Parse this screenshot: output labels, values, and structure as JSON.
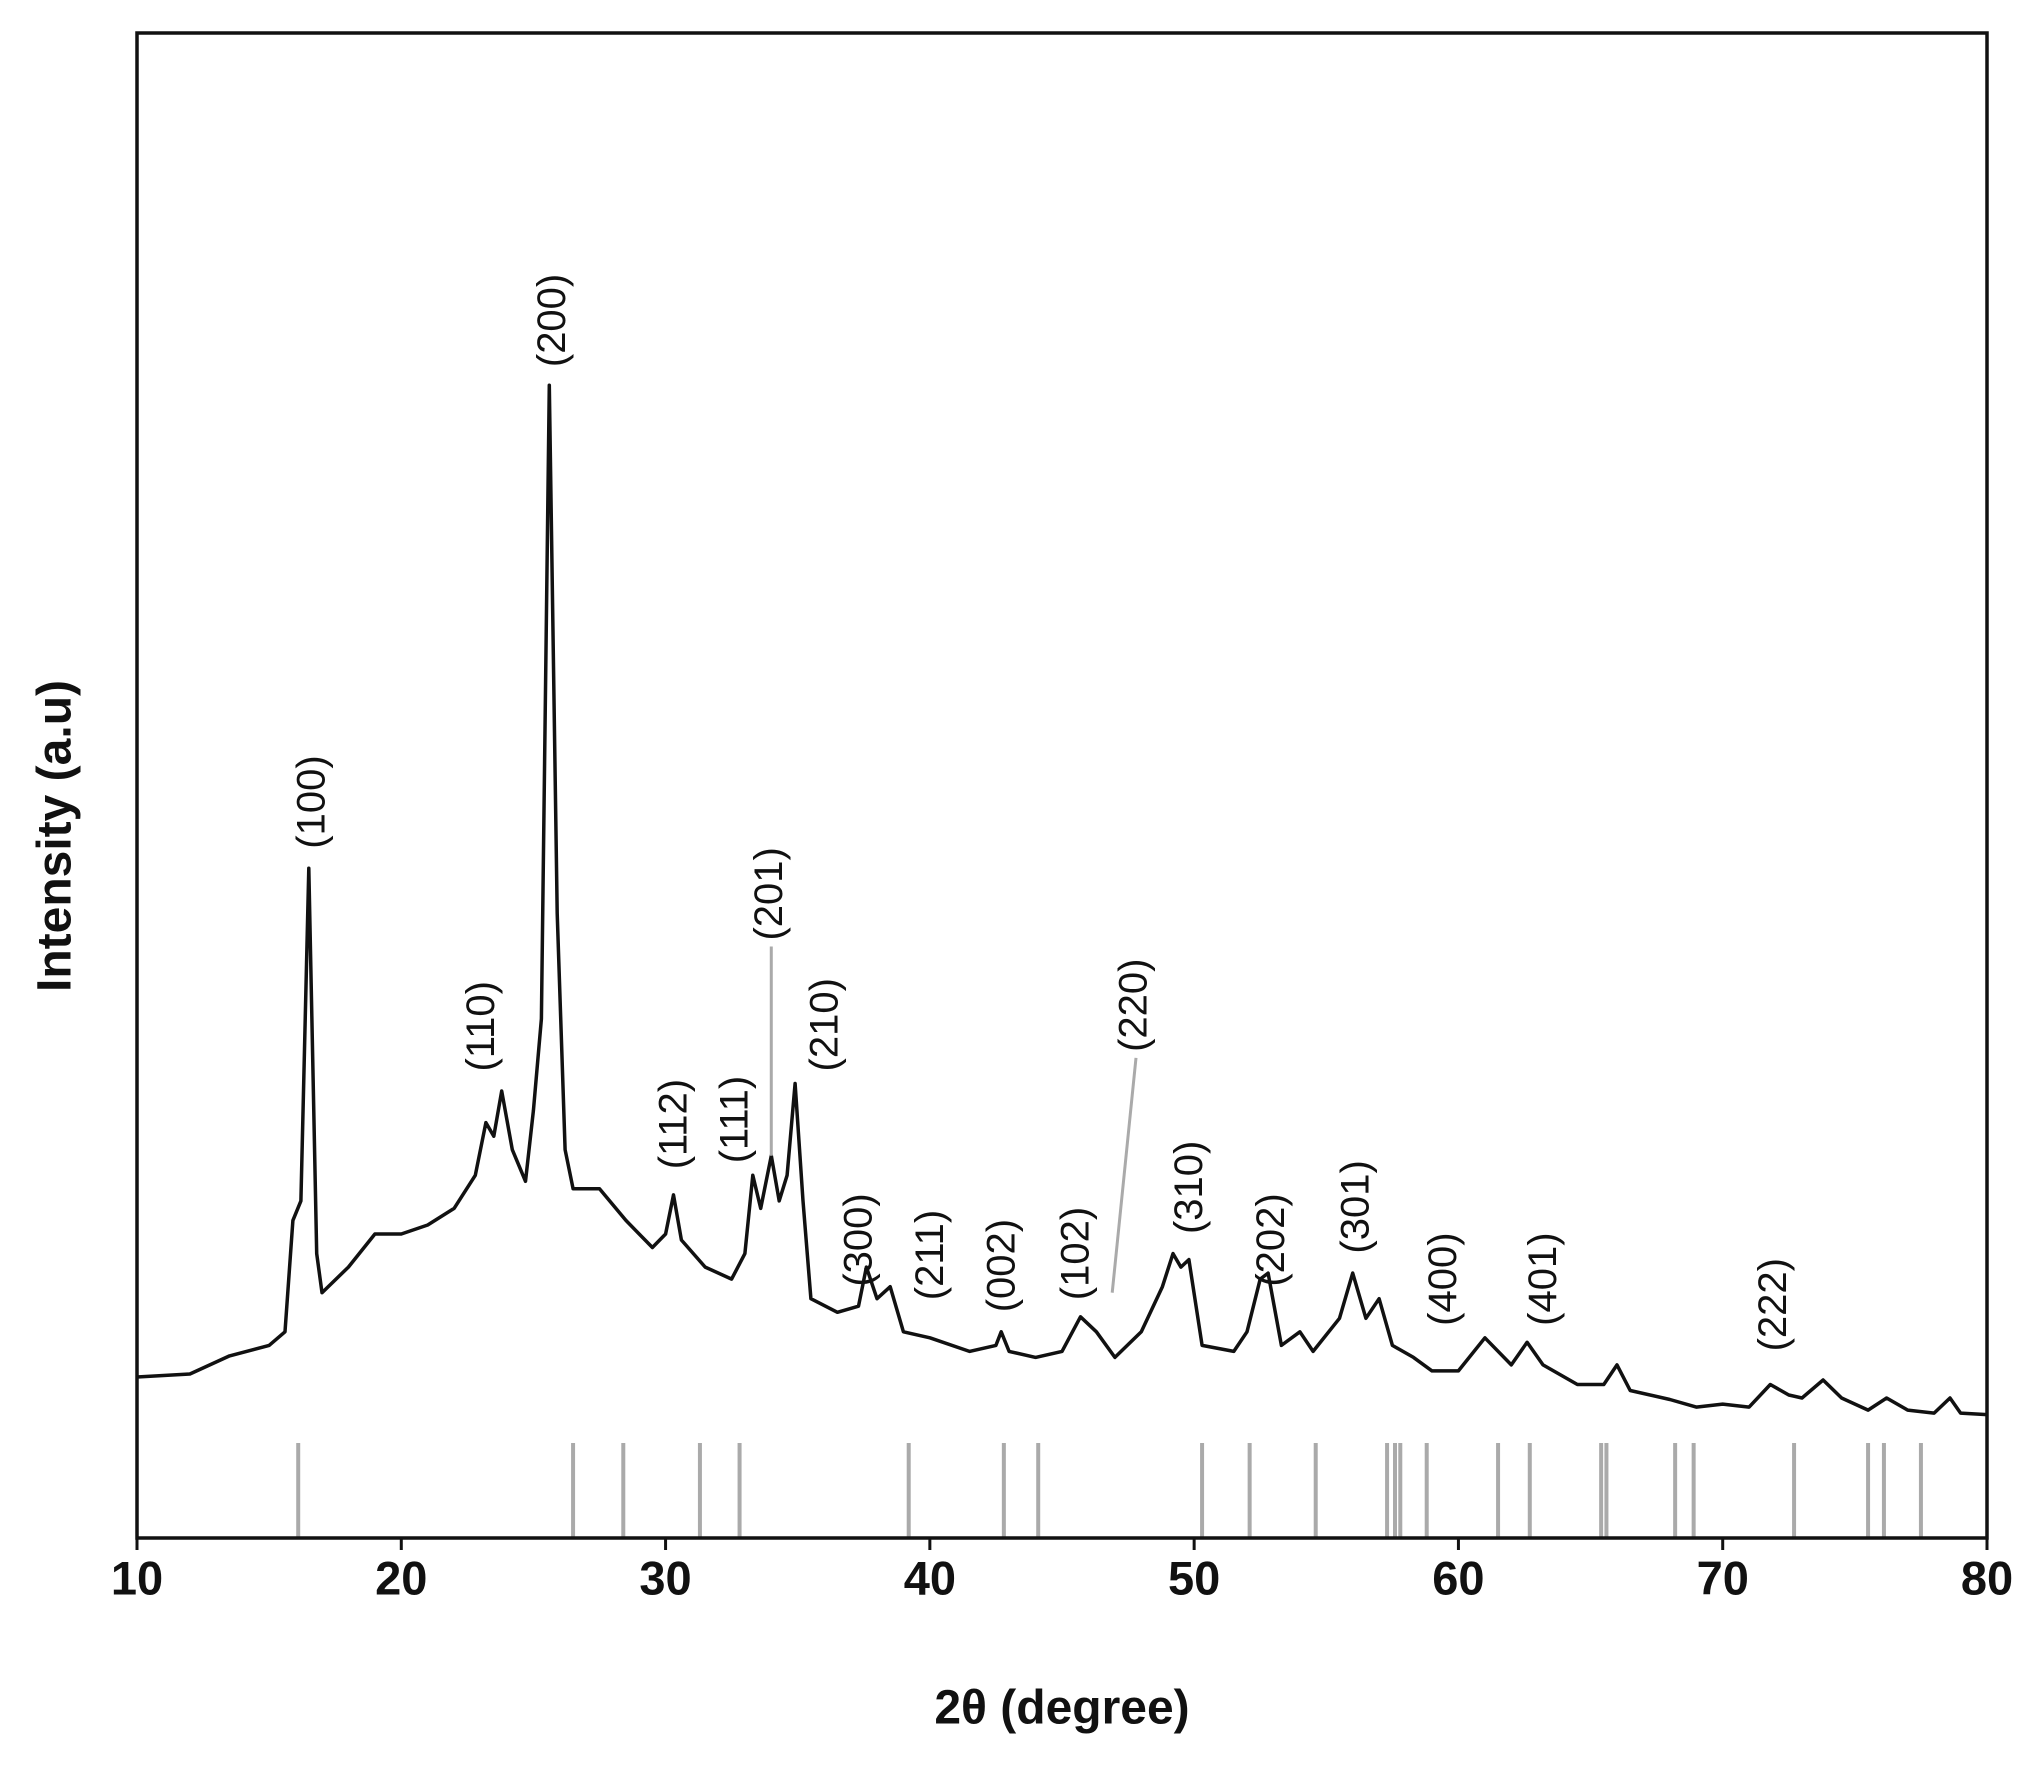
{
  "chart_data": {
    "type": "line",
    "xlabel": "2θ (degree)",
    "ylabel": "Intensity (a.u)",
    "xlim": [
      10,
      80
    ],
    "xticks": [
      10,
      20,
      30,
      40,
      50,
      60,
      70,
      80
    ],
    "ylim": [
      0,
      100
    ],
    "series": [
      {
        "color": "#111111",
        "x": [
          10,
          12,
          13.5,
          15,
          15.6,
          15.9,
          16.2,
          16.5,
          16.8,
          17,
          18,
          19,
          20,
          21,
          22,
          22.8,
          23.2,
          23.5,
          23.8,
          24.2,
          24.7,
          25.0,
          25.3,
          25.6,
          25.9,
          26.2,
          26.5,
          27.5,
          28.5,
          29.5,
          30.0,
          30.3,
          30.6,
          31.5,
          32.5,
          33.0,
          33.3,
          33.6,
          34.0,
          34.3,
          34.6,
          34.9,
          35.2,
          35.5,
          36.5,
          37.3,
          37.6,
          38.0,
          38.5,
          39.0,
          40.0,
          41.5,
          42.5,
          42.7,
          43.0,
          44.0,
          45.0,
          45.7,
          46.3,
          47.0,
          48.0,
          48.8,
          49.2,
          49.5,
          49.8,
          50.3,
          51.5,
          52.0,
          52.5,
          52.8,
          53.3,
          54.0,
          54.5,
          55.5,
          56.0,
          56.5,
          57.0,
          57.5,
          58.3,
          59,
          60,
          61,
          62,
          62.6,
          63.2,
          64.5,
          65.5,
          66,
          66.5,
          68,
          69,
          70,
          71,
          71.8,
          72.5,
          73,
          73.8,
          74.5,
          75.5,
          76.2,
          77,
          78,
          78.6,
          79,
          80
        ],
        "values": [
          10.7,
          10.9,
          12.1,
          12.8,
          13.7,
          21.1,
          22.4,
          44.5,
          18.9,
          16.3,
          18.0,
          20.2,
          20.2,
          20.8,
          21.9,
          24.1,
          27.6,
          26.7,
          29.7,
          25.8,
          23.7,
          28.4,
          34.5,
          76.6,
          41.5,
          25.8,
          23.2,
          23.2,
          21.1,
          19.3,
          20.2,
          22.8,
          19.8,
          18.0,
          17.2,
          18.9,
          24.1,
          21.9,
          25.4,
          22.4,
          24.1,
          30.2,
          22.4,
          15.9,
          15.0,
          15.4,
          18.0,
          15.9,
          16.7,
          13.7,
          13.3,
          12.4,
          12.8,
          13.7,
          12.4,
          12.0,
          12.4,
          14.7,
          13.7,
          12.0,
          13.7,
          16.7,
          18.9,
          18.0,
          18.5,
          12.8,
          12.4,
          13.7,
          17.2,
          17.6,
          12.8,
          13.7,
          12.4,
          14.6,
          17.6,
          14.6,
          15.9,
          12.8,
          12.0,
          11.1,
          11.1,
          13.3,
          11.5,
          13.0,
          11.5,
          10.2,
          10.2,
          11.5,
          9.8,
          9.2,
          8.7,
          8.9,
          8.7,
          10.2,
          9.5,
          9.3,
          10.5,
          9.3,
          8.5,
          9.3,
          8.5,
          8.3,
          9.3,
          8.3,
          8.2
        ]
      }
    ],
    "reference_peaks": {
      "color": "#aaaaaa",
      "x": [
        16.1,
        26.5,
        28.4,
        31.3,
        32.8,
        39.2,
        42.8,
        44.1,
        50.3,
        52.1,
        54.6,
        57.3,
        57.6,
        57.8,
        58.8,
        61.5,
        62.7,
        65.4,
        65.6,
        68.2,
        68.9,
        72.7,
        75.5,
        76.1,
        77.5
      ]
    },
    "annotations": [
      {
        "text": "(100)",
        "x": 16.7,
        "y": 45.4
      },
      {
        "text": "(110)",
        "x": 23.1,
        "y": 30.6
      },
      {
        "text": "(200)",
        "x": 25.8,
        "y": 77.4
      },
      {
        "text": "(112)",
        "x": 30.4,
        "y": 24.1
      },
      {
        "text": "(111)",
        "x": 32.7,
        "y": 24.5
      },
      {
        "text": "(201)",
        "x": 34.0,
        "y": 39.3,
        "point": [
          34.0,
          25.4
        ]
      },
      {
        "text": "(210)",
        "x": 36.1,
        "y": 30.6
      },
      {
        "text": "(300)",
        "x": 37.4,
        "y": 16.3
      },
      {
        "text": "(211)",
        "x": 40.1,
        "y": 15.4
      },
      {
        "text": "(002)",
        "x": 42.8,
        "y": 14.6
      },
      {
        "text": "(102)",
        "x": 45.6,
        "y": 15.4
      },
      {
        "text": "(220)",
        "x": 47.8,
        "y": 31.9,
        "point": [
          46.9,
          16.3
        ]
      },
      {
        "text": "(310)",
        "x": 49.9,
        "y": 19.8
      },
      {
        "text": "(202)",
        "x": 53.0,
        "y": 16.3
      },
      {
        "text": "(301)",
        "x": 56.2,
        "y": 18.5
      },
      {
        "text": "(400)",
        "x": 59.5,
        "y": 13.7
      },
      {
        "text": "(401)",
        "x": 63.3,
        "y": 13.7
      },
      {
        "text": "(222)",
        "x": 72.0,
        "y": 12.0
      }
    ]
  }
}
